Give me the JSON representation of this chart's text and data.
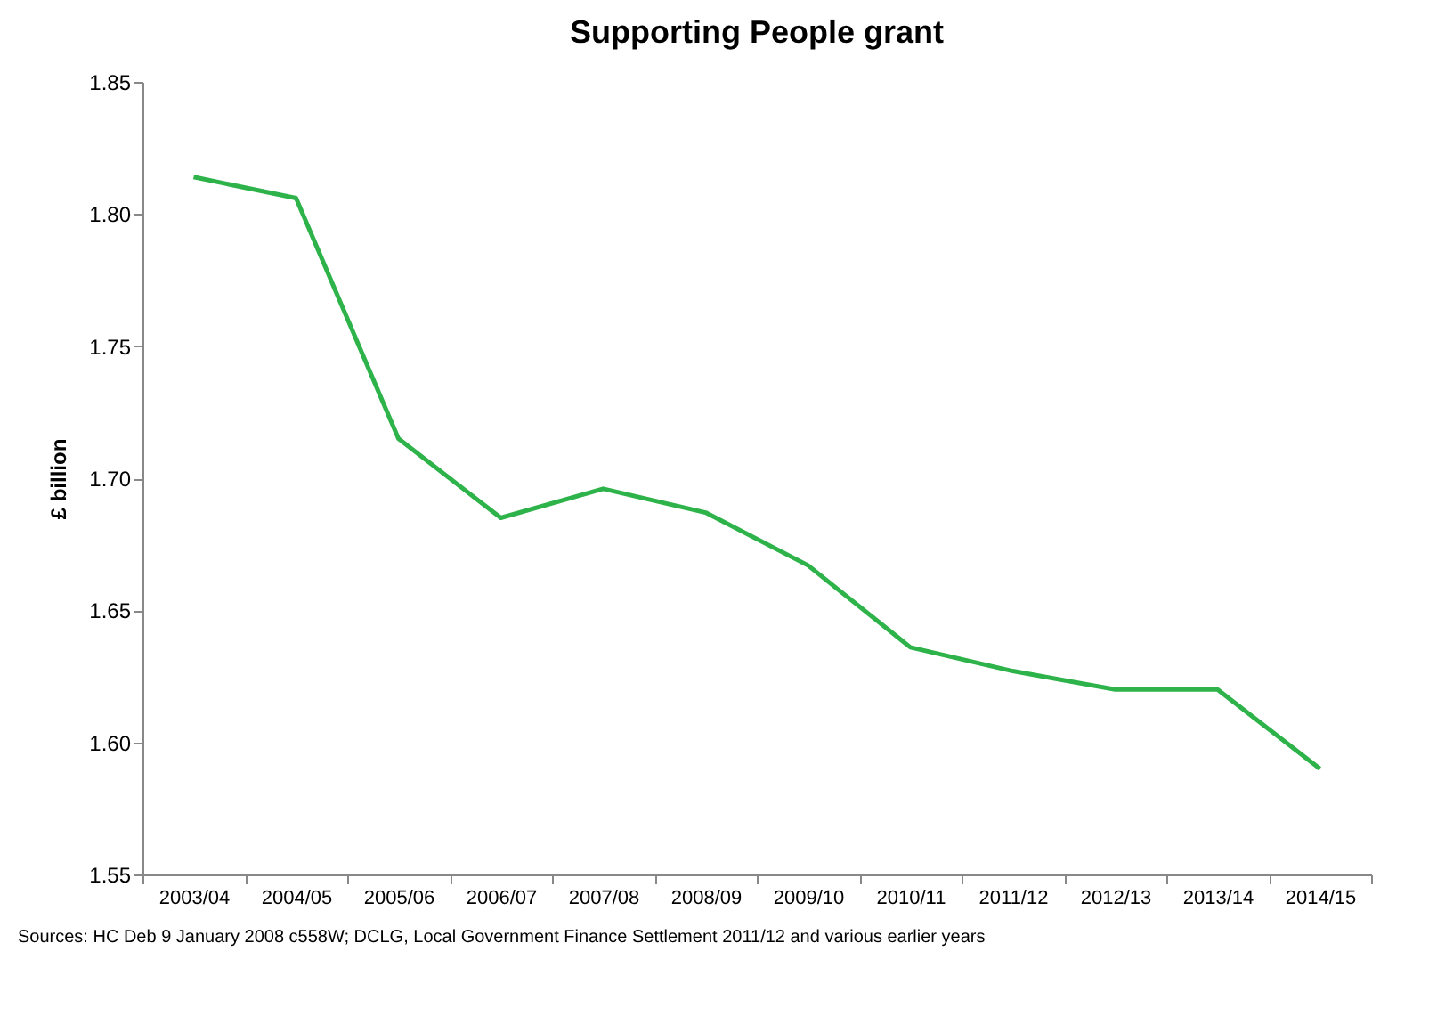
{
  "chart_data": {
    "type": "line",
    "title": "Supporting People grant",
    "ylabel": "£ billion",
    "categories": [
      "2003/04",
      "2004/05",
      "2005/06",
      "2006/07",
      "2007/08",
      "2008/09",
      "2009/10",
      "2010/11",
      "2011/12",
      "2012/13",
      "2013/14",
      "2014/15"
    ],
    "series": [
      {
        "color": "#2eb34a",
        "values": [
          1.814,
          1.806,
          1.715,
          1.685,
          1.696,
          1.687,
          1.667,
          1.636,
          1.627,
          1.62,
          1.62,
          1.59
        ]
      }
    ],
    "ylim": [
      1.55,
      1.85
    ],
    "yticks": [
      1.55,
      {
        "value": 1.6,
        "label": "1.60"
      },
      1.65,
      {
        "value": 1.7,
        "label": "1.70"
      },
      1.75,
      {
        "value": 1.8,
        "label": "1.80"
      },
      1.85
    ],
    "marker": "none",
    "line_style": "solid",
    "annotations": [
      "Sources: HC Deb 9 January 2008 c558W; DCLG, Local Government Finance Settlement 2011/12 and various earlier years"
    ]
  }
}
